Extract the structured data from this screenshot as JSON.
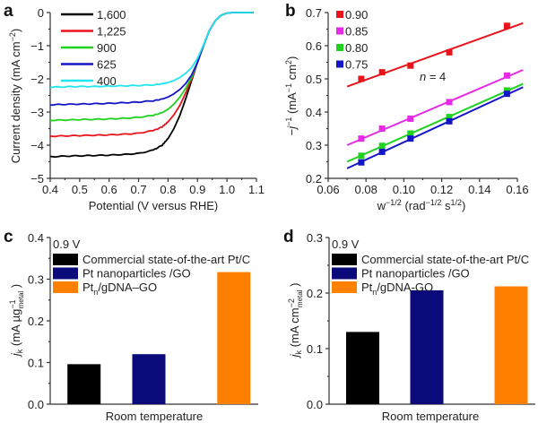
{
  "chart_data": [
    {
      "id": "a",
      "panel_label": "a",
      "type": "line",
      "xlabel": "Potential (V versus RHE)",
      "ylabel": "Current density (mA cm⁻²)",
      "ylabel_main": "Current density (mA cm",
      "ylabel_sup": "−2",
      "ylabel_end": ")",
      "xlim": [
        0.4,
        1.1
      ],
      "ylim": [
        -5,
        0
      ],
      "xticks": [
        0.4,
        0.5,
        0.6,
        0.7,
        0.8,
        0.9,
        1.0,
        1.1
      ],
      "xtick_labels": [
        "0.4",
        "0.5",
        "0.6",
        "0.7",
        "0.8",
        "0.9",
        "1.0",
        "1.1"
      ],
      "yticks": [
        0,
        -1,
        -2,
        -3,
        -4,
        -5
      ],
      "ytick_labels": [
        "0",
        "−1",
        "−2",
        "−3",
        "−4",
        "−5"
      ],
      "legend_position": "top-left",
      "series": [
        {
          "name": "1,600",
          "color": "#000000",
          "plateau": -4.35,
          "x": [
            0.4,
            0.45,
            0.5,
            0.55,
            0.6,
            0.65,
            0.7,
            0.75,
            0.78,
            0.8,
            0.82,
            0.84,
            0.86,
            0.88,
            0.9,
            0.92,
            0.94,
            0.96,
            0.98,
            1.0,
            1.02,
            1.05,
            1.09
          ],
          "y": [
            -4.35,
            -4.33,
            -4.32,
            -4.31,
            -4.3,
            -4.28,
            -4.25,
            -4.15,
            -4.0,
            -3.8,
            -3.5,
            -3.1,
            -2.6,
            -2.05,
            -1.5,
            -1.0,
            -0.55,
            -0.25,
            -0.08,
            -0.02,
            0,
            0,
            0
          ]
        },
        {
          "name": "1,225",
          "color": "#e8141b",
          "plateau": -3.73,
          "x": [
            0.4,
            0.45,
            0.5,
            0.55,
            0.6,
            0.65,
            0.7,
            0.75,
            0.78,
            0.8,
            0.82,
            0.84,
            0.86,
            0.88,
            0.9,
            0.92,
            0.94,
            0.96,
            0.98,
            1.0,
            1.02,
            1.05,
            1.09
          ],
          "y": [
            -3.73,
            -3.72,
            -3.71,
            -3.7,
            -3.69,
            -3.67,
            -3.64,
            -3.56,
            -3.45,
            -3.3,
            -3.08,
            -2.8,
            -2.42,
            -2.0,
            -1.5,
            -1.0,
            -0.55,
            -0.25,
            -0.08,
            -0.02,
            0,
            0,
            0
          ]
        },
        {
          "name": "900",
          "color": "#1fd21f",
          "plateau": -3.25,
          "x": [
            0.4,
            0.45,
            0.5,
            0.55,
            0.6,
            0.65,
            0.7,
            0.75,
            0.78,
            0.8,
            0.82,
            0.84,
            0.86,
            0.88,
            0.9,
            0.92,
            0.94,
            0.96,
            0.98,
            1.0,
            1.02,
            1.05,
            1.09
          ],
          "y": [
            -3.25,
            -3.24,
            -3.23,
            -3.22,
            -3.21,
            -3.19,
            -3.16,
            -3.1,
            -3.02,
            -2.92,
            -2.76,
            -2.55,
            -2.28,
            -1.95,
            -1.5,
            -1.0,
            -0.55,
            -0.25,
            -0.08,
            -0.02,
            0,
            0,
            0
          ]
        },
        {
          "name": "625",
          "color": "#1515c8",
          "plateau": -2.78,
          "x": [
            0.4,
            0.45,
            0.5,
            0.55,
            0.6,
            0.65,
            0.7,
            0.75,
            0.78,
            0.8,
            0.82,
            0.84,
            0.86,
            0.88,
            0.9,
            0.92,
            0.94,
            0.96,
            0.98,
            1.0,
            1.02,
            1.05,
            1.09
          ],
          "y": [
            -2.78,
            -2.77,
            -2.76,
            -2.75,
            -2.74,
            -2.72,
            -2.7,
            -2.66,
            -2.61,
            -2.55,
            -2.45,
            -2.32,
            -2.14,
            -1.88,
            -1.5,
            -1.0,
            -0.55,
            -0.25,
            -0.08,
            -0.02,
            0,
            0,
            0
          ]
        },
        {
          "name": "400",
          "color": "#22e5ee",
          "plateau": -2.25,
          "x": [
            0.4,
            0.45,
            0.5,
            0.55,
            0.6,
            0.65,
            0.7,
            0.75,
            0.78,
            0.8,
            0.82,
            0.84,
            0.86,
            0.88,
            0.9,
            0.92,
            0.94,
            0.96,
            0.98,
            1.0,
            1.02,
            1.05,
            1.09
          ],
          "y": [
            -2.25,
            -2.24,
            -2.23,
            -2.23,
            -2.22,
            -2.21,
            -2.2,
            -2.18,
            -2.15,
            -2.11,
            -2.05,
            -1.96,
            -1.83,
            -1.66,
            -1.38,
            -0.98,
            -0.55,
            -0.25,
            -0.08,
            -0.02,
            0,
            0,
            0
          ]
        }
      ]
    },
    {
      "id": "b",
      "panel_label": "b",
      "type": "scatter",
      "xlabel_main": "w",
      "xlabel_sup1": "−1/2",
      "xlabel_mid": " (rad",
      "xlabel_sup2": "−1/2",
      "xlabel_mid2": " s",
      "xlabel_sup3": "1/2",
      "xlabel_end": ")",
      "xlabel": "w⁻¹ᐟ² (rad⁻¹ᐟ² s¹ᐟ²)",
      "ylabel": "−j⁻¹ (mA⁻¹ cm²)",
      "ylabel_pre": "−",
      "ylabel_j": "j",
      "ylabel_sup1": "−1",
      "ylabel_mid": " (mA",
      "ylabel_sup2": "−1",
      "ylabel_mid2": " cm",
      "ylabel_sup3": "2",
      "ylabel_end": ")",
      "xlim": [
        0.06,
        0.16
      ],
      "ylim": [
        0.2,
        0.7
      ],
      "xticks": [
        0.06,
        0.08,
        0.1,
        0.12,
        0.14,
        0.16
      ],
      "xtick_labels": [
        "0.06",
        "0.08",
        "0.10",
        "0.12",
        "0.14",
        "0.16"
      ],
      "yticks": [
        0.2,
        0.3,
        0.4,
        0.5,
        0.6,
        0.7
      ],
      "ytick_labels": [
        "0.2",
        "0.3",
        "0.4",
        "0.5",
        "0.6",
        "0.7"
      ],
      "annotation": {
        "n_label": "n",
        "eq": " = 4"
      },
      "legend_position": "top-left",
      "x_points": [
        0.0775,
        0.0885,
        0.1035,
        0.124,
        0.1545
      ],
      "fit_x_range": [
        0.07,
        0.163
      ],
      "series": [
        {
          "name": "0.90",
          "color": "#e8141b",
          "values": [
            0.5,
            0.52,
            0.54,
            0.58,
            0.66
          ],
          "fit": [
            0.477,
            0.668
          ]
        },
        {
          "name": "0.85",
          "color": "#e62ae6",
          "values": [
            0.32,
            0.35,
            0.38,
            0.43,
            0.51
          ],
          "fit": [
            0.3,
            0.527
          ]
        },
        {
          "name": "0.80",
          "color": "#1fd21f",
          "values": [
            0.268,
            0.298,
            0.335,
            0.385,
            0.465
          ],
          "fit": [
            0.25,
            0.485
          ]
        },
        {
          "name": "0.75",
          "color": "#1515c8",
          "values": [
            0.248,
            0.28,
            0.32,
            0.372,
            0.455
          ],
          "fit": [
            0.23,
            0.475
          ]
        }
      ]
    },
    {
      "id": "c",
      "panel_label": "c",
      "type": "bar",
      "title": "0.9 V",
      "xlabel": "Room temperature",
      "ylabel": "j_k (mA µg⁻¹ metal)",
      "ylabel_j": "j",
      "ylabel_k": "k",
      "ylabel_mid": " (mA µg",
      "ylabel_sup": "−1",
      "ylabel_sub": "metal",
      "ylabel_end": " )",
      "ylim": [
        0,
        0.4
      ],
      "yticks": [
        0.0,
        0.1,
        0.2,
        0.3,
        0.4
      ],
      "ytick_labels": [
        "0.0",
        "0.1",
        "0.2",
        "0.3",
        "0.4"
      ],
      "legend_position": "top-left",
      "categories": [
        "Commercial state-of-the-art Pt/C",
        "Pt nanoparticles /GO",
        "Pt_n/gDNA–GO"
      ],
      "legend": [
        {
          "label": "Commercial state-of-the-art Pt/C",
          "color": "#000000"
        },
        {
          "label": "Pt nanoparticles /GO",
          "color": "#0a0a7a"
        },
        {
          "label_main": "Pt",
          "label_sub": "n",
          "label_rest": "/gDNA–GO",
          "label": "Pt_n/gDNA–GO",
          "color": "#ff8000"
        }
      ],
      "values": [
        0.096,
        0.12,
        0.317
      ]
    },
    {
      "id": "d",
      "panel_label": "d",
      "type": "bar",
      "title": "0.9 V",
      "xlabel": "Room temperature",
      "ylabel": "j_k (mA cm⁻² metal)",
      "ylabel_j": "j",
      "ylabel_k": "k",
      "ylabel_mid": " (mA cm",
      "ylabel_sup": "−2",
      "ylabel_sub": "metal",
      "ylabel_end": " )",
      "ylim": [
        0,
        0.3
      ],
      "yticks": [
        0.0,
        0.1,
        0.2,
        0.3
      ],
      "ytick_labels": [
        "0.0",
        "0.1",
        "0.2",
        "0.3"
      ],
      "legend_position": "top-left",
      "categories": [
        "Commercial state-of-the-art Pt/C",
        "Pt nanoparticles /GO",
        "Pt_n/gDNA-GO"
      ],
      "legend": [
        {
          "label": "Commercial state-of-the-art Pt/C",
          "color": "#000000"
        },
        {
          "label": "Pt nanoparticles /GO",
          "color": "#0a0a7a"
        },
        {
          "label_main": "Pt",
          "label_sub": "n",
          "label_rest": "/gDNA-GO",
          "label": "Pt_n/gDNA-GO",
          "color": "#ff8000"
        }
      ],
      "values": [
        0.13,
        0.205,
        0.212
      ]
    }
  ]
}
